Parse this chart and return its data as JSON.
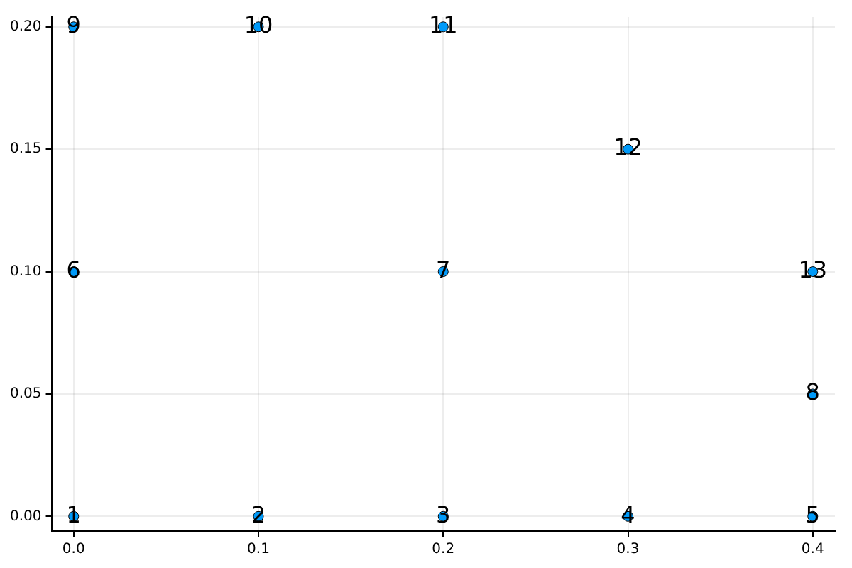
{
  "chart_data": {
    "type": "scatter",
    "x": [
      0,
      0.1,
      0.2,
      0.3,
      0.4,
      0,
      0.2,
      0.4,
      0,
      0.1,
      0.2,
      0.3,
      0.4
    ],
    "values": [
      0,
      0,
      0,
      0,
      0,
      0.1,
      0.1,
      0.05,
      0.2,
      0.2,
      0.2,
      0.15,
      0.1
    ],
    "color": "#009af9",
    "marker": "circle",
    "grid": true,
    "legend": false,
    "xlim": [
      -0.012,
      0.412
    ],
    "ylim": [
      -0.006,
      0.204
    ],
    "xticks": [
      {
        "value": 0,
        "label": "0.0"
      },
      {
        "value": 0.1,
        "label": "0.1"
      },
      {
        "value": 0.2,
        "label": "0.2"
      },
      {
        "value": 0.3,
        "label": "0.3"
      },
      {
        "value": 0.4,
        "label": "0.4"
      }
    ],
    "yticks": [
      {
        "value": 0,
        "label": "0.00"
      },
      {
        "value": 0.05,
        "label": "0.05"
      },
      {
        "value": 0.1,
        "label": "0.10"
      },
      {
        "value": 0.15,
        "label": "0.15"
      },
      {
        "value": 0.2,
        "label": "0.20"
      }
    ],
    "annotations": [
      {
        "text": "1",
        "x": 0,
        "y": 0
      },
      {
        "text": "2",
        "x": 0.1,
        "y": 0
      },
      {
        "text": "3",
        "x": 0.2,
        "y": 0
      },
      {
        "text": "4",
        "x": 0.3,
        "y": 0
      },
      {
        "text": "5",
        "x": 0.4,
        "y": 0
      },
      {
        "text": "6",
        "x": 0,
        "y": 0.1
      },
      {
        "text": "7",
        "x": 0.2,
        "y": 0.1
      },
      {
        "text": "8",
        "x": 0.4,
        "y": 0.05
      },
      {
        "text": "9",
        "x": 0,
        "y": 0.2
      },
      {
        "text": "10",
        "x": 0.1,
        "y": 0.2
      },
      {
        "text": "11",
        "x": 0.2,
        "y": 0.2
      },
      {
        "text": "12",
        "x": 0.3,
        "y": 0.15
      },
      {
        "text": "13",
        "x": 0.4,
        "y": 0.1
      }
    ]
  }
}
